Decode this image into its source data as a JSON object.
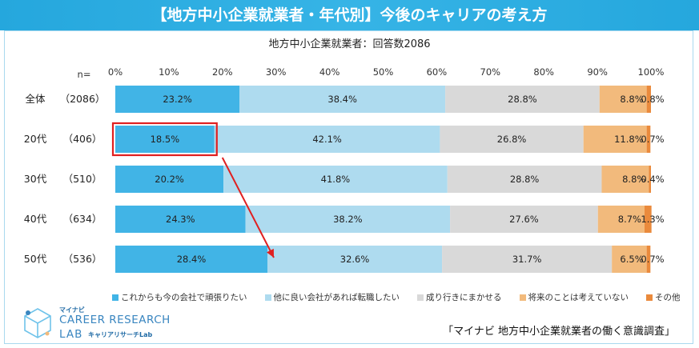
{
  "header": {
    "title": "【地方中小企業就業者・年代別】今後のキャリアの考え方",
    "subtitle": "地方中小企業就業者：回答数2086"
  },
  "chart_data": {
    "type": "bar",
    "orientation": "horizontal-stacked-100",
    "n_label": "n=",
    "x_ticks": [
      "0%",
      "10%",
      "20%",
      "30%",
      "40%",
      "50%",
      "60%",
      "70%",
      "80%",
      "90%",
      "100%"
    ],
    "xlim": [
      0,
      100
    ],
    "categories": [
      "全体",
      "20代",
      "30代",
      "40代",
      "50代"
    ],
    "counts": [
      "（2086）",
      "（406）",
      "（510）",
      "（634）",
      "（536）"
    ],
    "series": [
      {
        "name": "これからも今の会社で頑張りたい",
        "color": "#41b4e6",
        "values": [
          23.2,
          18.5,
          20.2,
          24.3,
          28.4
        ]
      },
      {
        "name": "他に良い会社があれば転職したい",
        "color": "#aedbef",
        "values": [
          38.4,
          42.1,
          41.8,
          38.2,
          32.6
        ]
      },
      {
        "name": "成り行きにまかせる",
        "color": "#d9d9d9",
        "values": [
          28.8,
          26.8,
          28.8,
          27.6,
          31.7
        ]
      },
      {
        "name": "将来のことは考えていない",
        "color": "#f2ba7c",
        "values": [
          8.8,
          11.8,
          8.8,
          8.7,
          6.5
        ]
      },
      {
        "name": "その他",
        "color": "#ea8a3c",
        "values": [
          0.8,
          0.7,
          0.4,
          1.3,
          0.7
        ]
      }
    ],
    "labels": [
      [
        "23.2%",
        "38.4%",
        "28.8%",
        "8.8%",
        "0.8%"
      ],
      [
        "18.5%",
        "42.1%",
        "26.8%",
        "11.8%",
        "0.7%"
      ],
      [
        "20.2%",
        "41.8%",
        "28.8%",
        "8.8%",
        "0.4%"
      ],
      [
        "24.3%",
        "38.2%",
        "27.6%",
        "8.7%",
        "1.3%"
      ],
      [
        "28.4%",
        "32.6%",
        "31.7%",
        "6.5%",
        "0.7%"
      ]
    ],
    "highlight": {
      "row": 1,
      "series": 0,
      "color": "#e02020"
    },
    "arrow": {
      "from_value": 18.5,
      "to_value": 28.4,
      "color": "#e02020"
    }
  },
  "legend_marker": "■",
  "logo": {
    "small": "マイナビ",
    "main": "CAREER RESEARCH",
    "lab": "LAB",
    "sub": "キャリアリサーチLab"
  },
  "source": "「マイナビ 地方中小企業就業者の働く意識調査」"
}
